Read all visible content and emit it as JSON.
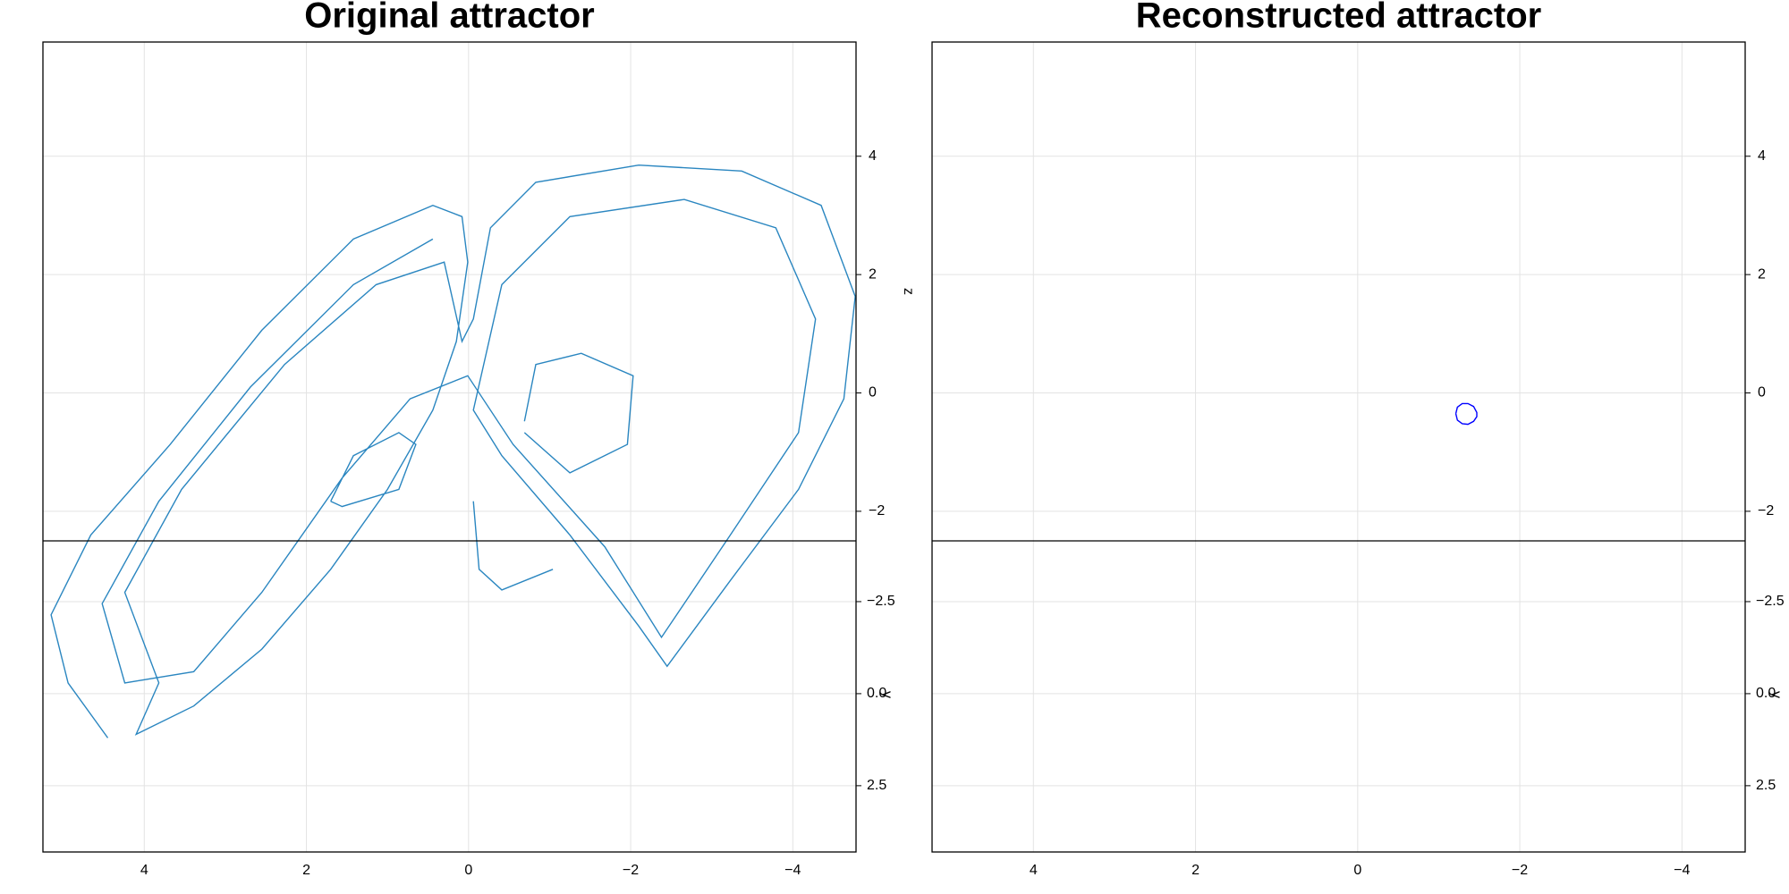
{
  "chart_data": [
    {
      "type": "line",
      "title": "Original attractor",
      "zlabel": "z",
      "ylabel": "y",
      "xlim": [
        5.25,
        -4.78
      ],
      "xticks": [
        4,
        2,
        0,
        {
          "value": -2,
          "label": "−2"
        },
        {
          "value": -4,
          "label": "−4"
        }
      ],
      "zlim": [
        -2.5,
        5.93
      ],
      "zticks": [
        4,
        2,
        0,
        {
          "value": -2,
          "label": "−2"
        }
      ],
      "ylim": [
        -4.15,
        4.3
      ],
      "yticks": [
        {
          "value": -2.5,
          "label": "−2.5"
        },
        {
          "value": 0,
          "label": "0.0"
        },
        2.5
      ],
      "grid": true,
      "series": [
        {
          "color": "#2a86c0",
          "x": [
            4.45,
            4.94,
            5.15,
            4.66,
            3.68,
            2.55,
            1.42,
            0.44,
            0.08,
            0.01,
            0.15,
            0.44,
            1.0,
            1.7,
            2.55,
            3.39,
            4.1,
            3.82,
            4.24,
            3.54,
            2.27,
            1.14,
            0.3,
            0.08,
            -0.06,
            -0.27,
            -0.83,
            -2.1,
            -3.37,
            -4.35,
            -4.77,
            -4.63,
            -4.07,
            -3.23,
            -2.45,
            -2.1,
            -1.25,
            -0.41,
            -0.06,
            -0.41,
            -1.25,
            -2.66,
            -3.79,
            -4.28,
            -4.07,
            -3.23,
            -2.38,
            -1.68,
            -0.55,
            0.01,
            0.72,
            1.56,
            2.55,
            3.39,
            4.24,
            4.52,
            3.82,
            2.69,
            1.42,
            0.44,
            null,
            1.7,
            1.42,
            0.86,
            0.65,
            0.86,
            1.56,
            1.7,
            null,
            -0.69,
            -0.83,
            -1.39,
            -2.03,
            -1.96,
            -1.25,
            -0.69,
            null,
            -0.06,
            -0.13,
            -0.41,
            -1.04
          ],
          "z": [
            -5.83,
            -4.9,
            -3.75,
            -2.4,
            -0.87,
            1.06,
            2.6,
            3.17,
            2.98,
            2.21,
            0.87,
            -0.29,
            -1.63,
            -2.98,
            -4.33,
            -5.29,
            -5.77,
            -4.9,
            -3.37,
            -1.63,
            0.48,
            1.83,
            2.21,
            0.87,
            1.25,
            2.79,
            3.56,
            3.85,
            3.75,
            3.17,
            1.63,
            -0.1,
            -1.63,
            -3.17,
            -4.62,
            -3.94,
            -2.4,
            -1.06,
            -0.29,
            1.83,
            2.98,
            3.27,
            2.79,
            1.25,
            -0.67,
            -2.4,
            -4.13,
            -2.6,
            -0.87,
            0.29,
            -0.1,
            -1.44,
            -3.37,
            -4.71,
            -4.9,
            -3.56,
            -1.83,
            0.1,
            1.83,
            2.6,
            null,
            -1.83,
            -1.06,
            -0.67,
            -0.87,
            -1.63,
            -1.92,
            -1.83,
            null,
            -0.48,
            0.48,
            0.67,
            0.29,
            -0.87,
            -1.35,
            -0.67,
            null,
            -1.83,
            -2.98,
            -3.33,
            -2.98
          ]
        }
      ]
    },
    {
      "type": "line",
      "title": "Reconstructed attractor",
      "ylabel": "y",
      "xlim": [
        5.25,
        -4.78
      ],
      "xticks": [
        4,
        2,
        0,
        {
          "value": -2,
          "label": "−2"
        },
        {
          "value": -4,
          "label": "−4"
        }
      ],
      "zlim": [
        -2.5,
        5.93
      ],
      "zticks": [
        4,
        2,
        0,
        {
          "value": -2,
          "label": "−2"
        }
      ],
      "ylim": [
        -4.15,
        4.3
      ],
      "yticks": [
        {
          "value": -2.5,
          "label": "−2.5"
        },
        {
          "value": 0,
          "label": "0.0"
        },
        2.5
      ],
      "grid": true,
      "series": [
        {
          "color": "#0000ff",
          "x": [
            -1.21,
            -1.23,
            -1.29,
            -1.36,
            -1.43,
            -1.47,
            -1.47,
            -1.43,
            -1.36,
            -1.29,
            -1.23,
            -1.21
          ],
          "z": [
            -0.35,
            -0.24,
            -0.18,
            -0.18,
            -0.23,
            -0.33,
            -0.4,
            -0.48,
            -0.53,
            -0.52,
            -0.46,
            -0.35
          ]
        }
      ]
    }
  ]
}
